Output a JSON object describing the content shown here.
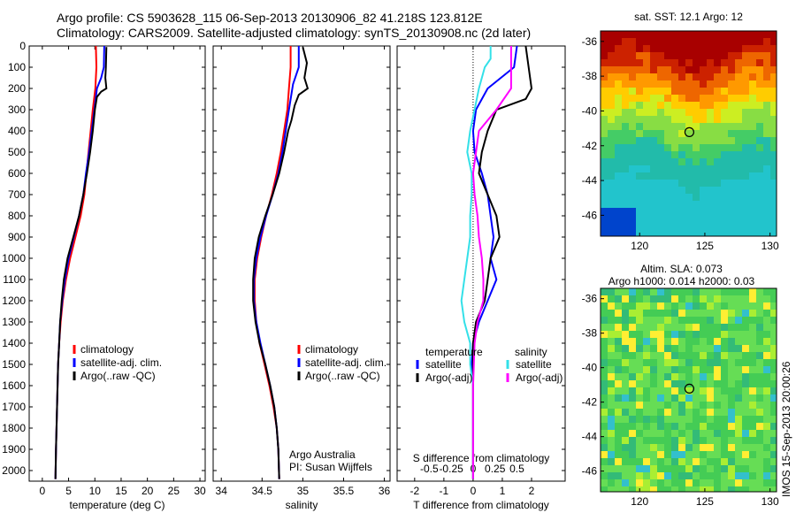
{
  "header": {
    "line1": "Argo profile: CS 5903628_115 06-Sep-2013 20130906_82 41.218S 123.812E",
    "line2": "Climatology: CARS2009. Satellite-adjusted climatology: synTS_20130908.nc (2d later)"
  },
  "colors": {
    "red": "#ff0000",
    "blue": "#0000ff",
    "black": "#000000",
    "cyan": "#33e0e8",
    "magenta": "#ff00ff"
  },
  "depth_ticks": [
    0,
    100,
    200,
    300,
    400,
    500,
    600,
    700,
    800,
    900,
    1000,
    1100,
    1200,
    1300,
    1400,
    1500,
    1600,
    1700,
    1800,
    1900,
    2000
  ],
  "chart_data": [
    {
      "type": "line",
      "xlabel": "temperature (deg C)",
      "xticks": [
        "0",
        "5",
        "10",
        "15",
        "20",
        "25",
        "30"
      ],
      "xlim": [
        -2.5,
        31
      ],
      "ylim": [
        2050,
        0
      ],
      "legend": [
        "climatology",
        "satellite-adj. clim.",
        "Argo(..raw -QC)"
      ],
      "series": [
        {
          "name": "climatology",
          "color": "red",
          "points": [
            [
              10.2,
              0
            ],
            [
              10.3,
              100
            ],
            [
              10.1,
              200
            ],
            [
              9.6,
              300
            ],
            [
              9.2,
              400
            ],
            [
              8.8,
              500
            ],
            [
              8.4,
              600
            ],
            [
              8.0,
              700
            ],
            [
              7.3,
              800
            ],
            [
              6.3,
              900
            ],
            [
              5.3,
              1000
            ],
            [
              4.5,
              1100
            ],
            [
              3.9,
              1200
            ],
            [
              3.5,
              1300
            ],
            [
              3.2,
              1400
            ],
            [
              3.0,
              1500
            ],
            [
              2.9,
              1600
            ],
            [
              2.8,
              1700
            ],
            [
              2.7,
              1800
            ],
            [
              2.6,
              1900
            ],
            [
              2.5,
              2040
            ]
          ]
        },
        {
          "name": "satellite-adj. clim.",
          "color": "blue",
          "points": [
            [
              11.8,
              0
            ],
            [
              11.7,
              100
            ],
            [
              11.2,
              150
            ],
            [
              10.4,
              200
            ],
            [
              9.9,
              300
            ],
            [
              9.4,
              400
            ],
            [
              8.9,
              500
            ],
            [
              8.3,
              600
            ],
            [
              7.8,
              700
            ],
            [
              7.0,
              800
            ],
            [
              6.0,
              900
            ],
            [
              5.0,
              1000
            ],
            [
              4.3,
              1100
            ],
            [
              3.8,
              1200
            ],
            [
              3.4,
              1300
            ],
            [
              3.2,
              1400
            ],
            [
              3.0,
              1500
            ],
            [
              2.9,
              1600
            ],
            [
              2.8,
              1700
            ],
            [
              2.7,
              1800
            ],
            [
              2.6,
              1900
            ],
            [
              2.5,
              2040
            ]
          ]
        },
        {
          "name": "Argo(..raw -QC)",
          "color": "black",
          "points": [
            [
              12.2,
              5
            ],
            [
              12.1,
              100
            ],
            [
              12.0,
              150
            ],
            [
              12.2,
              200
            ],
            [
              11.2,
              215
            ],
            [
              10.4,
              240
            ],
            [
              10.0,
              300
            ],
            [
              9.6,
              400
            ],
            [
              9.1,
              500
            ],
            [
              8.5,
              600
            ],
            [
              7.8,
              700
            ],
            [
              7.0,
              800
            ],
            [
              5.9,
              900
            ],
            [
              4.8,
              1000
            ],
            [
              4.1,
              1100
            ],
            [
              3.7,
              1200
            ],
            [
              3.4,
              1300
            ],
            [
              3.2,
              1400
            ],
            [
              3.0,
              1500
            ],
            [
              2.9,
              1600
            ],
            [
              2.8,
              1700
            ],
            [
              2.7,
              1800
            ],
            [
              2.6,
              1900
            ],
            [
              2.5,
              2040
            ]
          ]
        }
      ]
    },
    {
      "type": "line",
      "xlabel": "salinity",
      "xticks": [
        "34",
        "34.5",
        "35",
        "35.5",
        "36"
      ],
      "xlim": [
        33.9,
        36.07
      ],
      "ylim": [
        2050,
        0
      ],
      "legend": [
        "climatology",
        "satellite-adj. clim.",
        "Argo(..raw -QC)"
      ],
      "series": [
        {
          "name": "climatology",
          "color": "red",
          "points": [
            [
              34.85,
              0
            ],
            [
              34.85,
              100
            ],
            [
              34.83,
              200
            ],
            [
              34.81,
              300
            ],
            [
              34.77,
              400
            ],
            [
              34.73,
              500
            ],
            [
              34.68,
              600
            ],
            [
              34.62,
              700
            ],
            [
              34.55,
              800
            ],
            [
              34.49,
              900
            ],
            [
              34.44,
              1000
            ],
            [
              34.41,
              1100
            ],
            [
              34.41,
              1200
            ],
            [
              34.43,
              1300
            ],
            [
              34.47,
              1400
            ],
            [
              34.53,
              1500
            ],
            [
              34.59,
              1600
            ],
            [
              34.64,
              1700
            ],
            [
              34.68,
              1800
            ],
            [
              34.7,
              1900
            ],
            [
              34.71,
              2040
            ]
          ]
        },
        {
          "name": "satellite-adj. clim.",
          "color": "blue",
          "points": [
            [
              34.95,
              0
            ],
            [
              34.95,
              100
            ],
            [
              34.88,
              180
            ],
            [
              34.83,
              300
            ],
            [
              34.79,
              400
            ],
            [
              34.75,
              500
            ],
            [
              34.7,
              600
            ],
            [
              34.63,
              700
            ],
            [
              34.55,
              800
            ],
            [
              34.48,
              900
            ],
            [
              34.43,
              1000
            ],
            [
              34.4,
              1100
            ],
            [
              34.4,
              1200
            ],
            [
              34.43,
              1300
            ],
            [
              34.48,
              1400
            ],
            [
              34.54,
              1500
            ],
            [
              34.6,
              1600
            ],
            [
              34.65,
              1700
            ],
            [
              34.68,
              1800
            ],
            [
              34.7,
              1900
            ],
            [
              34.71,
              2040
            ]
          ]
        },
        {
          "name": "Argo(..raw -QC)",
          "color": "black",
          "points": [
            [
              35.0,
              5
            ],
            [
              35.05,
              80
            ],
            [
              35.02,
              150
            ],
            [
              35.06,
              200
            ],
            [
              34.95,
              230
            ],
            [
              34.9,
              280
            ],
            [
              34.86,
              350
            ],
            [
              34.82,
              400
            ],
            [
              34.77,
              500
            ],
            [
              34.71,
              600
            ],
            [
              34.63,
              700
            ],
            [
              34.54,
              800
            ],
            [
              34.46,
              900
            ],
            [
              34.41,
              1000
            ],
            [
              34.39,
              1100
            ],
            [
              34.39,
              1200
            ],
            [
              34.42,
              1300
            ],
            [
              34.47,
              1400
            ],
            [
              34.54,
              1500
            ],
            [
              34.6,
              1600
            ],
            [
              34.65,
              1700
            ],
            [
              34.68,
              1800
            ],
            [
              34.7,
              1900
            ],
            [
              34.71,
              2040
            ]
          ]
        }
      ]
    },
    {
      "type": "line",
      "xlabel": "T difference from climatology",
      "top_axis_label": "S difference from climatology",
      "xticks": [
        "-2",
        "-1",
        "0",
        "1",
        "2"
      ],
      "xlim": [
        -2.6,
        3.15
      ],
      "s_ticks": [
        "-0.5",
        "-0.25",
        "0",
        "0.25",
        "0.5"
      ],
      "ylim": [
        2050,
        0
      ],
      "legend_headers": [
        "temperature",
        "salinity"
      ],
      "legend": [
        "satellite",
        "Argo(-adj)",
        "satellite",
        "Argo(-adj)"
      ],
      "series": [
        {
          "name": "satellite",
          "color": "blue",
          "points": [
            [
              1.5,
              0
            ],
            [
              1.4,
              100
            ],
            [
              0.5,
              200
            ],
            [
              0.1,
              300
            ],
            [
              0.0,
              400
            ],
            [
              0.05,
              500
            ],
            [
              0.3,
              600
            ],
            [
              0.5,
              700
            ],
            [
              0.6,
              800
            ],
            [
              0.7,
              900
            ],
            [
              0.6,
              1000
            ],
            [
              0.8,
              1100
            ],
            [
              0.5,
              1200
            ],
            [
              0.2,
              1300
            ],
            [
              0.0,
              1400
            ],
            [
              -0.05,
              1500
            ],
            [
              0.0,
              1600
            ],
            [
              0.0,
              1800
            ],
            [
              0.0,
              2040
            ]
          ]
        },
        {
          "name": "Argo(-adj)",
          "color": "black",
          "points": [
            [
              1.8,
              0
            ],
            [
              1.9,
              100
            ],
            [
              2.0,
              200
            ],
            [
              1.8,
              250
            ],
            [
              0.8,
              300
            ],
            [
              0.5,
              400
            ],
            [
              0.3,
              500
            ],
            [
              0.2,
              600
            ],
            [
              0.5,
              700
            ],
            [
              0.8,
              800
            ],
            [
              0.9,
              900
            ],
            [
              0.6,
              1000
            ],
            [
              0.5,
              1100
            ],
            [
              0.4,
              1200
            ],
            [
              0.1,
              1300
            ],
            [
              0.0,
              1400
            ],
            [
              0.0,
              1600
            ],
            [
              0.0,
              1800
            ],
            [
              0.0,
              2040
            ]
          ]
        },
        {
          "name": "satellite",
          "color": "cyan",
          "points": [
            [
              0.6,
              0
            ],
            [
              0.6,
              60
            ],
            [
              0.4,
              100
            ],
            [
              0.2,
              200
            ],
            [
              0.05,
              300
            ],
            [
              -0.1,
              400
            ],
            [
              -0.2,
              500
            ],
            [
              -0.05,
              600
            ],
            [
              -0.05,
              700
            ],
            [
              -0.1,
              800
            ],
            [
              -0.1,
              900
            ],
            [
              -0.2,
              1000
            ],
            [
              -0.3,
              1100
            ],
            [
              -0.4,
              1200
            ],
            [
              -0.3,
              1300
            ],
            [
              -0.1,
              1400
            ],
            [
              -0.1,
              1500
            ],
            [
              0.0,
              1600
            ],
            [
              0.0,
              1800
            ],
            [
              0.0,
              2040
            ]
          ]
        },
        {
          "name": "Argo(-adj)",
          "color": "magenta",
          "points": [
            [
              1.3,
              0
            ],
            [
              1.3,
              100
            ],
            [
              1.3,
              200
            ],
            [
              0.8,
              300
            ],
            [
              0.2,
              400
            ],
            [
              0.1,
              500
            ],
            [
              0.0,
              600
            ],
            [
              0.05,
              700
            ],
            [
              0.15,
              800
            ],
            [
              0.2,
              900
            ],
            [
              0.3,
              1000
            ],
            [
              0.35,
              1100
            ],
            [
              0.35,
              1200
            ],
            [
              0.15,
              1300
            ],
            [
              0.05,
              1400
            ],
            [
              0.0,
              1600
            ],
            [
              0.0,
              1800
            ],
            [
              0.0,
              2040
            ]
          ]
        }
      ]
    },
    {
      "type": "heatmap",
      "title": "sat. SST: 12.1 Argo: 12",
      "xticks": [
        "120",
        "125",
        "130"
      ],
      "yticks": [
        "-36",
        "-38",
        "-40",
        "-42",
        "-44",
        "-46"
      ],
      "xlim": [
        117,
        130.5
      ],
      "ylim": [
        -47.2,
        -35.4
      ],
      "marker": {
        "lon": 123.812,
        "lat": -41.218
      }
    },
    {
      "type": "heatmap",
      "title": "Altim. SLA: 0.073",
      "subtitle": "Argo h1000: 0.014 h2000: 0.03",
      "xticks": [
        "120",
        "125",
        "130"
      ],
      "yticks": [
        "-36",
        "-38",
        "-40",
        "-42",
        "-44",
        "-46"
      ],
      "xlim": [
        117,
        130.5
      ],
      "ylim": [
        -47.2,
        -35.4
      ],
      "marker": {
        "lon": 123.812,
        "lat": -41.218
      }
    }
  ],
  "annotations": {
    "org": "Argo Australia",
    "pi": "PI: Susan Wijffels"
  },
  "footer": {
    "side_label": "IMOS 15-Sep-2013 20:00:26"
  }
}
